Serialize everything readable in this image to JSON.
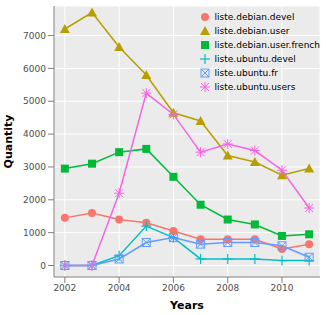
{
  "chart_data": {
    "type": "line",
    "x_label": "Years",
    "y_label": "Quantity",
    "x": [
      2002,
      2003,
      2004,
      2005,
      2006,
      2007,
      2008,
      2009,
      2010,
      2011
    ],
    "xlim": [
      2001.6,
      2011.4
    ],
    "xticks": [
      2002,
      2004,
      2006,
      2008,
      2010
    ],
    "ylim": [
      -350,
      7900
    ],
    "yticks": [
      0,
      1000,
      2000,
      3000,
      4000,
      5000,
      6000,
      7000
    ],
    "grid": true,
    "legend": "top-right",
    "series": [
      {
        "name": "liste.debian.devel",
        "color": "#F8766D",
        "marker": "circle",
        "values": [
          1450,
          1600,
          1400,
          1300,
          1050,
          800,
          800,
          800,
          500,
          650
        ]
      },
      {
        "name": "liste.debian.user",
        "color": "#B79F00",
        "marker": "triangle",
        "values": [
          7200,
          7700,
          6650,
          5800,
          4650,
          4400,
          3350,
          3150,
          2750,
          2950
        ]
      },
      {
        "name": "liste.debian.user.french",
        "color": "#00BA38",
        "marker": "square",
        "values": [
          2950,
          3100,
          3450,
          3550,
          2700,
          1850,
          1400,
          1250,
          900,
          950
        ]
      },
      {
        "name": "liste.ubuntu.devel",
        "color": "#00BFC4",
        "marker": "plus",
        "values": [
          0,
          0,
          300,
          1200,
          850,
          200,
          200,
          200,
          150,
          150
        ]
      },
      {
        "name": "liste.ubuntu.fr",
        "color": "#619CFF",
        "marker": "square_x",
        "values": [
          0,
          0,
          200,
          700,
          850,
          650,
          700,
          700,
          600,
          250
        ]
      },
      {
        "name": "liste.ubuntu.users",
        "color": "#F564E3",
        "marker": "star",
        "values": [
          0,
          0,
          2200,
          5250,
          4600,
          3450,
          3700,
          3500,
          2900,
          1750
        ]
      }
    ]
  }
}
